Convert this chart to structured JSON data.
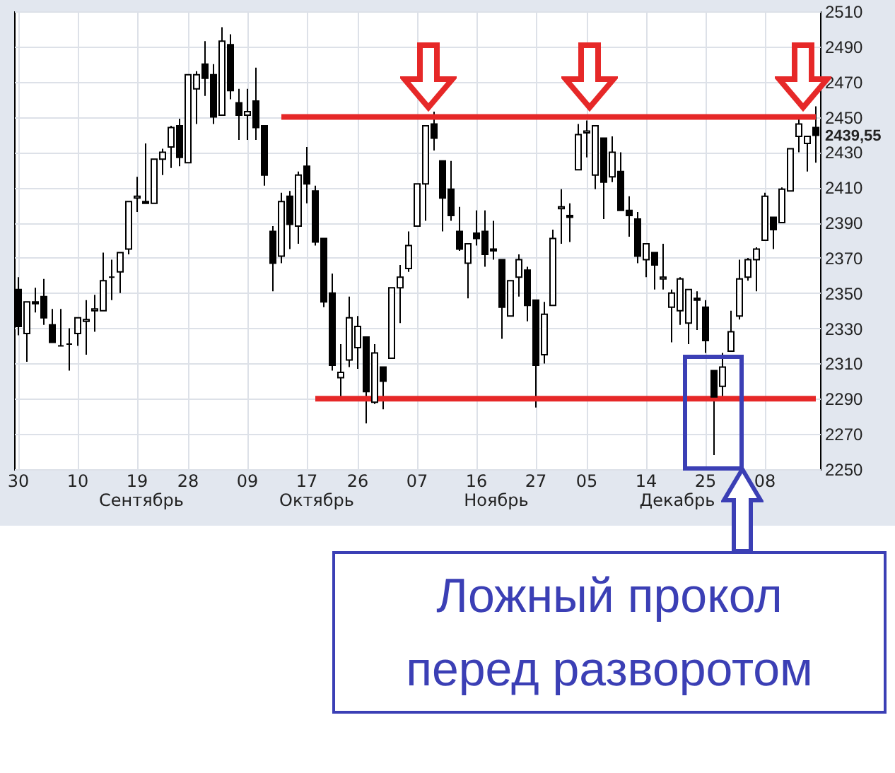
{
  "chart_data": {
    "type": "candlestick",
    "categories": [
      "30",
      null,
      null,
      null,
      null,
      null,
      null,
      "10",
      null,
      null,
      null,
      null,
      null,
      null,
      "19",
      null,
      null,
      null,
      null,
      null,
      "28",
      null,
      null,
      null,
      null,
      null,
      null,
      "09",
      null,
      null,
      null,
      null,
      null,
      null,
      "17",
      null,
      null,
      null,
      null,
      null,
      "26",
      null,
      null,
      null,
      null,
      null,
      null,
      "07",
      null,
      null,
      null,
      null,
      null,
      null,
      "16",
      null,
      null,
      null,
      null,
      null,
      null,
      "27",
      null,
      null,
      null,
      null,
      null,
      "05",
      null,
      null,
      null,
      null,
      null,
      null,
      "14",
      null,
      null,
      null,
      null,
      null,
      null,
      "25",
      null,
      null,
      null,
      null,
      null,
      null,
      "08",
      null,
      null,
      null,
      null,
      null,
      null
    ],
    "ohlc": [
      [
        2352,
        2359,
        2326,
        2331
      ],
      [
        2327,
        2345,
        2311,
        2345
      ],
      [
        2345,
        2353,
        2339,
        2344
      ],
      [
        2348,
        2358,
        2332,
        2336
      ],
      [
        2332,
        2341,
        2322,
        2322
      ],
      [
        2320,
        2341,
        2320,
        2320
      ],
      [
        2321,
        2330,
        2306,
        2321
      ],
      [
        2327,
        2336,
        2320,
        2336
      ],
      [
        2334,
        2346,
        2315,
        2335
      ],
      [
        2340,
        2349,
        2328,
        2341
      ],
      [
        2340,
        2373,
        2340,
        2357
      ],
      [
        2359,
        2369,
        2346,
        2359
      ],
      [
        2362,
        2373,
        2350,
        2373
      ],
      [
        2375,
        2402,
        2372,
        2402
      ],
      [
        2404,
        2416,
        2396,
        2405
      ],
      [
        2402,
        2435,
        2401,
        2401
      ],
      [
        2401,
        2426,
        2401,
        2426
      ],
      [
        2426,
        2432,
        2417,
        2430
      ],
      [
        2433,
        2445,
        2421,
        2444
      ],
      [
        2445,
        2449,
        2422,
        2427
      ],
      [
        2424,
        2474,
        2424,
        2474
      ],
      [
        2466,
        2476,
        2446,
        2474
      ],
      [
        2480,
        2493,
        2462,
        2472
      ],
      [
        2474,
        2480,
        2446,
        2450
      ],
      [
        2451,
        2501,
        2451,
        2493
      ],
      [
        2491,
        2497,
        2460,
        2465
      ],
      [
        2458,
        2466,
        2437,
        2451
      ],
      [
        2451,
        2466,
        2437,
        2453
      ],
      [
        2459,
        2478,
        2437,
        2444
      ],
      [
        2445,
        2445,
        2411,
        2417
      ],
      [
        2385,
        2388,
        2351,
        2367
      ],
      [
        2371,
        2407,
        2367,
        2402
      ],
      [
        2405,
        2408,
        2375,
        2389
      ],
      [
        2388,
        2419,
        2378,
        2417
      ],
      [
        2422,
        2433,
        2401,
        2412
      ],
      [
        2408,
        2411,
        2377,
        2379
      ],
      [
        2381,
        2381,
        2342,
        2345
      ],
      [
        2350,
        2361,
        2306,
        2309
      ],
      [
        2302,
        2321,
        2290,
        2305
      ],
      [
        2312,
        2348,
        2308,
        2336
      ],
      [
        2319,
        2337,
        2307,
        2331
      ],
      [
        2325,
        2325,
        2276,
        2294
      ],
      [
        2288,
        2321,
        2287,
        2316
      ],
      [
        2308,
        2308,
        2284,
        2300
      ],
      [
        2313,
        2353,
        2313,
        2353
      ],
      [
        2353,
        2366,
        2333,
        2359
      ],
      [
        2364,
        2385,
        2362,
        2377
      ],
      [
        2388,
        2412,
        2388,
        2412
      ],
      [
        2412,
        2445,
        2391,
        2445
      ],
      [
        2446,
        2453,
        2431,
        2438
      ],
      [
        2425,
        2425,
        2385,
        2404
      ],
      [
        2409,
        2425,
        2391,
        2394
      ],
      [
        2385,
        2399,
        2374,
        2375
      ],
      [
        2367,
        2378,
        2347,
        2378
      ],
      [
        2384,
        2397,
        2377,
        2381
      ],
      [
        2385,
        2397,
        2365,
        2372
      ],
      [
        2375,
        2391,
        2369,
        2374
      ],
      [
        2369,
        2369,
        2324,
        2342
      ],
      [
        2337,
        2357,
        2337,
        2357
      ],
      [
        2359,
        2372,
        2348,
        2369
      ],
      [
        2363,
        2365,
        2334,
        2343
      ],
      [
        2346,
        2346,
        2285,
        2309
      ],
      [
        2315,
        2345,
        2310,
        2338
      ],
      [
        2343,
        2386,
        2343,
        2381
      ],
      [
        2398,
        2409,
        2378,
        2399
      ],
      [
        2394,
        2401,
        2379,
        2393
      ],
      [
        2420,
        2446,
        2420,
        2440
      ],
      [
        2441,
        2448,
        2427,
        2442
      ],
      [
        2417,
        2445,
        2409,
        2445
      ],
      [
        2438,
        2438,
        2392,
        2413
      ],
      [
        2416,
        2439,
        2413,
        2430
      ],
      [
        2419,
        2430,
        2397,
        2397
      ],
      [
        2397,
        2405,
        2382,
        2394
      ],
      [
        2392,
        2396,
        2367,
        2371
      ],
      [
        2369,
        2378,
        2359,
        2378
      ],
      [
        2373,
        2373,
        2352,
        2366
      ],
      [
        2358,
        2378,
        2352,
        2359
      ],
      [
        2342,
        2352,
        2322,
        2350
      ],
      [
        2340,
        2359,
        2332,
        2358
      ],
      [
        2333,
        2352,
        2321,
        2352
      ],
      [
        2347,
        2351,
        2329,
        2346
      ],
      [
        2342,
        2346,
        2316,
        2323
      ],
      [
        2306,
        2306,
        2258,
        2291
      ],
      [
        2297,
        2316,
        2291,
        2308
      ],
      [
        2317,
        2340,
        2317,
        2328
      ],
      [
        2337,
        2369,
        2335,
        2358
      ],
      [
        2359,
        2370,
        2357,
        2369
      ],
      [
        2369,
        2376,
        2351,
        2375
      ],
      [
        2380,
        2407,
        2380,
        2405
      ],
      [
        2393,
        2393,
        2375,
        2386
      ],
      [
        2390,
        2410,
        2390,
        2409
      ],
      [
        2408,
        2432,
        2408,
        2432
      ],
      [
        2439,
        2450,
        2430,
        2446
      ],
      [
        2435,
        2439,
        2419,
        2439
      ],
      [
        2444,
        2456,
        2424,
        2439.55
      ]
    ],
    "series": [
      {
        "type": "line",
        "color": "#e62828",
        "values": [
          null,
          null,
          null,
          null,
          null,
          null,
          null,
          null,
          null,
          null,
          null,
          null,
          null,
          null,
          null,
          null,
          null,
          null,
          null,
          null,
          null,
          null,
          null,
          null,
          null,
          null,
          null,
          null,
          null,
          null,
          null,
          2450,
          2450,
          2450,
          2450,
          2450,
          2450,
          2450,
          2450,
          2450,
          2450,
          2450,
          2450,
          2450,
          2450,
          2450,
          2450,
          2450,
          2450,
          2450,
          2450,
          2450,
          2450,
          2450,
          2450,
          2450,
          2450,
          2450,
          2450,
          2450,
          2450,
          2450,
          2450,
          2450,
          2450,
          2450,
          2450,
          2450,
          2450,
          2450,
          2450,
          2450,
          2450,
          2450,
          2450,
          2450,
          2450,
          2450,
          2450,
          2450,
          2450,
          2450,
          2450,
          2450,
          2450,
          2450,
          2450,
          2450,
          2450,
          2450,
          2450,
          2450,
          2450,
          2450,
          2450
        ]
      },
      {
        "type": "line",
        "color": "#e62828",
        "values": [
          null,
          null,
          null,
          null,
          null,
          null,
          null,
          null,
          null,
          null,
          null,
          null,
          null,
          null,
          null,
          null,
          null,
          null,
          null,
          null,
          null,
          null,
          null,
          null,
          null,
          null,
          null,
          null,
          null,
          null,
          null,
          null,
          null,
          null,
          null,
          2290,
          2290,
          2290,
          2290,
          2290,
          2290,
          2290,
          2290,
          2290,
          2290,
          2290,
          2290,
          2290,
          2290,
          2290,
          2290,
          2290,
          2290,
          2290,
          2290,
          2290,
          2290,
          2290,
          2290,
          2290,
          2290,
          2290,
          2290,
          2290,
          2290,
          2290,
          2290,
          2290,
          2290,
          2290,
          2290,
          2290,
          2290,
          2290,
          2290,
          2290,
          2290,
          2290,
          2290,
          2290,
          2290,
          2290,
          2290,
          2290,
          2290,
          2290,
          2290,
          2290,
          2290,
          2290,
          2290,
          2290,
          2290,
          2290,
          2290
        ]
      }
    ],
    "ylim": [
      2250,
      2510
    ],
    "yticks": [
      2250,
      2270,
      2290,
      2310,
      2330,
      2350,
      2370,
      2390,
      2410,
      2430,
      {
        "value": 2439.55,
        "label": "2439,55"
      },
      2450,
      2470,
      2490,
      2510
    ],
    "grid": true,
    "annotations": [
      "Сентябрь",
      "Октябрь",
      "Ноябрь",
      "Декабрь",
      "Ложный прокол перед разворотом"
    ]
  }
}
